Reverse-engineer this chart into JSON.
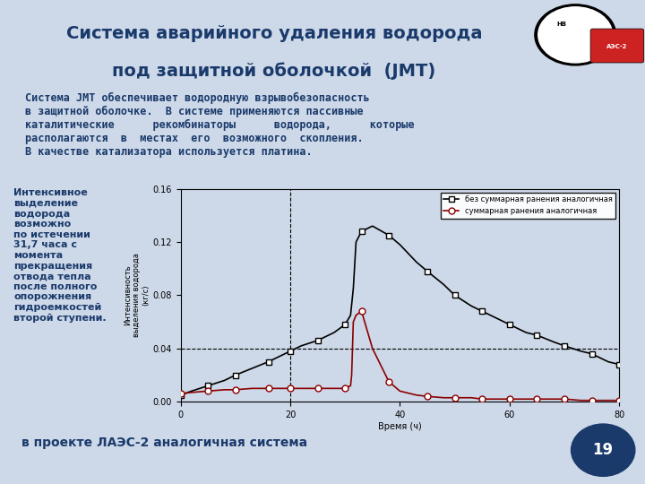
{
  "title_line1": "Система аварийного удаления водорода",
  "title_line2": "под защитной оболочкой  (JMT)",
  "bg_color": "#cdd8e8",
  "title_color": "#1a3a6b",
  "body_text": "Система JMT обеспечивает водородную взрывобезопасность\nв защитной оболочке.  В системе применяются пассивные\nкаталитические      рекомбинаторы      водорода,      которые\nрасполагаются  в  местах  его  возможного  скопления.\nВ качестве катализатора используется платина.",
  "side_text": "Интенсивное\nвыделение\nводорода\nвозможно\nпо истечении\n31,7 часа с\nмомента\nпрекращения\nотвода тепла\nпосле полного\nопорожнения\nгидроемкостей\nвторой ступени.",
  "bottom_text": "в проекте ЛАЭС-2 аналогичная система",
  "xlabel": "Время (ч)",
  "ylabel": "Интенсивность\nвыделения водорода\n(кг/с)",
  "xlim": [
    0,
    80
  ],
  "ylim": [
    0,
    0.16
  ],
  "yticks": [
    0,
    0.04,
    0.08,
    0.12,
    0.16
  ],
  "xticks": [
    0,
    20,
    40,
    60,
    80
  ],
  "dashed_vline_x": 20,
  "dashed_hline_y": 0.04,
  "legend_label1": "без суммарная ранения аналогичная",
  "legend_label2": "суммарная ранения аналогичная",
  "line1_color": "#000000",
  "line2_color": "#8b0000",
  "marker1": "s",
  "marker2": "o",
  "line1_x": [
    0,
    2,
    5,
    8,
    10,
    13,
    16,
    18,
    20,
    22,
    25,
    28,
    30,
    31,
    31.5,
    32,
    33,
    35,
    38,
    40,
    43,
    45,
    48,
    50,
    53,
    55,
    58,
    60,
    63,
    65,
    68,
    70,
    73,
    75,
    78,
    80
  ],
  "line1_y": [
    0.005,
    0.008,
    0.012,
    0.016,
    0.02,
    0.025,
    0.03,
    0.034,
    0.038,
    0.042,
    0.046,
    0.052,
    0.058,
    0.065,
    0.085,
    0.12,
    0.128,
    0.132,
    0.125,
    0.118,
    0.105,
    0.098,
    0.088,
    0.08,
    0.072,
    0.068,
    0.062,
    0.058,
    0.052,
    0.05,
    0.045,
    0.042,
    0.038,
    0.036,
    0.03,
    0.028
  ],
  "line2_x": [
    0,
    2,
    5,
    8,
    10,
    13,
    16,
    18,
    20,
    22,
    25,
    28,
    30,
    31,
    31.2,
    31.5,
    32,
    33,
    35,
    38,
    40,
    43,
    45,
    48,
    50,
    53,
    55,
    58,
    60,
    63,
    65,
    68,
    70,
    73,
    75,
    78,
    80
  ],
  "line2_y": [
    0.006,
    0.007,
    0.008,
    0.009,
    0.009,
    0.01,
    0.01,
    0.01,
    0.01,
    0.01,
    0.01,
    0.01,
    0.01,
    0.012,
    0.02,
    0.06,
    0.065,
    0.068,
    0.04,
    0.015,
    0.008,
    0.005,
    0.004,
    0.003,
    0.003,
    0.003,
    0.002,
    0.002,
    0.002,
    0.002,
    0.002,
    0.002,
    0.002,
    0.001,
    0.001,
    0.001,
    0.001
  ],
  "marker1_x": [
    0,
    5,
    10,
    16,
    20,
    25,
    30,
    33,
    38,
    45,
    50,
    55,
    60,
    65,
    70,
    75,
    80
  ],
  "marker1_y": [
    0.005,
    0.012,
    0.02,
    0.03,
    0.038,
    0.046,
    0.058,
    0.128,
    0.125,
    0.098,
    0.08,
    0.068,
    0.058,
    0.05,
    0.042,
    0.036,
    0.028
  ],
  "marker2_x": [
    0,
    5,
    10,
    16,
    20,
    25,
    30,
    33,
    38,
    45,
    50,
    55,
    60,
    65,
    70,
    75,
    80
  ],
  "marker2_y": [
    0.006,
    0.008,
    0.009,
    0.01,
    0.01,
    0.01,
    0.01,
    0.068,
    0.015,
    0.004,
    0.003,
    0.002,
    0.002,
    0.002,
    0.002,
    0.001,
    0.001
  ],
  "page_number": "19",
  "plot_bg_color": "#cdd8e8"
}
